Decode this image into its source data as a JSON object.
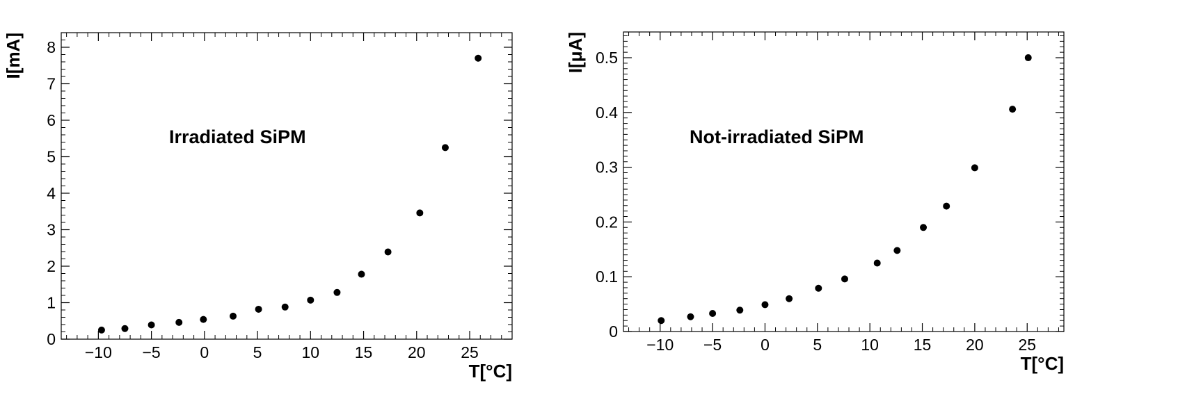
{
  "chart_data": [
    {
      "type": "scatter",
      "annotation": "Irradiated SiPM",
      "xlabel": "T[°C]",
      "ylabel": "I[mA]",
      "xlim": [
        -13.5,
        29
      ],
      "ylim": [
        0,
        8.4
      ],
      "x_ticks": [
        -10,
        -5,
        0,
        5,
        10,
        15,
        20,
        25
      ],
      "x_tick_labels": [
        "−10",
        "−5",
        "0",
        "5",
        "10",
        "15",
        "20",
        "25"
      ],
      "y_ticks": [
        0,
        1,
        2,
        3,
        4,
        5,
        6,
        7,
        8
      ],
      "y_tick_labels": [
        "0",
        "1",
        "2",
        "3",
        "4",
        "5",
        "6",
        "7",
        "8"
      ],
      "series": [
        {
          "x": [
            -9.7,
            -7.5,
            -5.0,
            -2.4,
            -0.1,
            2.7,
            5.1,
            7.6,
            10.0,
            12.5,
            14.8,
            17.3,
            20.3,
            22.7,
            25.8
          ],
          "y": [
            0.25,
            0.29,
            0.39,
            0.46,
            0.54,
            0.63,
            0.82,
            0.88,
            1.07,
            1.28,
            1.78,
            2.39,
            3.46,
            5.25,
            7.7
          ]
        }
      ]
    },
    {
      "type": "scatter",
      "annotation": "Not-irradiated SiPM",
      "xlabel": "T[°C]",
      "ylabel": "I[μA]",
      "xlim": [
        -13.5,
        28.5
      ],
      "ylim": [
        0,
        0.547
      ],
      "x_ticks": [
        -10,
        -5,
        0,
        5,
        10,
        15,
        20,
        25
      ],
      "x_tick_labels": [
        "−10",
        "−5",
        "0",
        "5",
        "10",
        "15",
        "20",
        "25"
      ],
      "y_ticks": [
        0,
        0.1,
        0.2,
        0.3,
        0.4,
        0.5
      ],
      "y_tick_labels": [
        "0",
        "0.1",
        "0.2",
        "0.3",
        "0.4",
        "0.5"
      ],
      "series": [
        {
          "x": [
            -9.9,
            -7.1,
            -5.0,
            -2.4,
            0.0,
            2.3,
            5.1,
            7.6,
            10.7,
            12.6,
            15.1,
            17.3,
            20.0,
            23.6,
            25.1
          ],
          "y": [
            0.02,
            0.027,
            0.033,
            0.039,
            0.049,
            0.06,
            0.079,
            0.096,
            0.125,
            0.148,
            0.19,
            0.229,
            0.299,
            0.406,
            0.5
          ]
        }
      ]
    }
  ]
}
